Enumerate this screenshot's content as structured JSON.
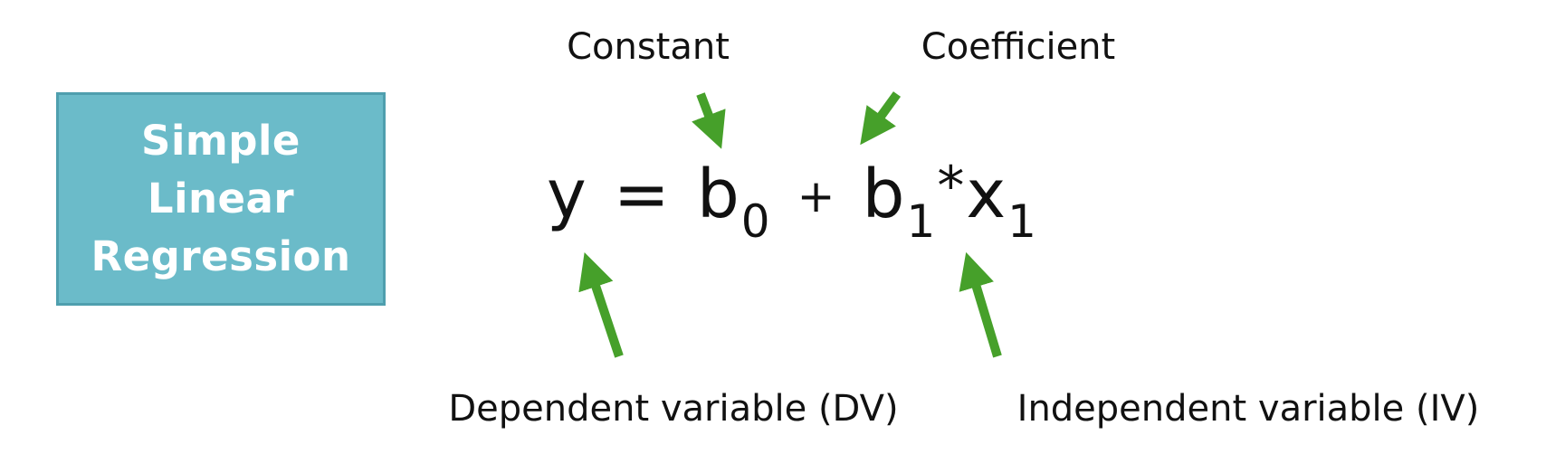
{
  "title_box": {
    "lines": [
      "Simple",
      "Linear",
      "Regression"
    ],
    "background_color": "#6bbbc9"
  },
  "equation": {
    "y": "y",
    "equals": "=",
    "b0_base": "b",
    "b0_sub": "0",
    "plus": "+",
    "b1_base": "b",
    "b1_sub": "1",
    "star": "*",
    "x1_base": "x",
    "x1_sub": "1"
  },
  "labels": {
    "constant": "Constant",
    "coefficient": "Coefficient",
    "dependent": "Dependent variable (DV)",
    "independent": "Independent variable (IV)"
  },
  "arrow_color": "#46a02a"
}
